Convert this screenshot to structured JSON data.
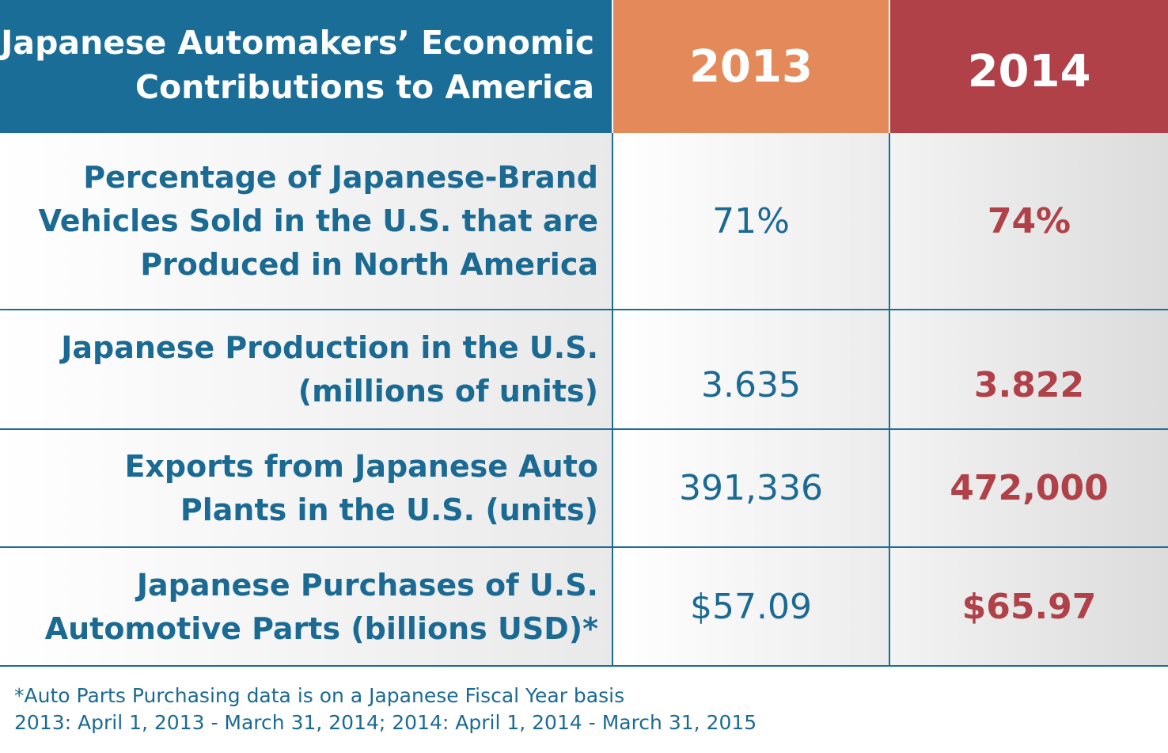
{
  "chart_data": {
    "type": "table",
    "title": "Japanese Automakers’ Economic Contributions to America",
    "title_lines": [
      "Japanese Automakers’ Economic",
      "Contributions to America"
    ],
    "columns": [
      "2013",
      "2014"
    ],
    "rows": [
      {
        "label_lines": [
          "Percentage of Japanese-Brand",
          "Vehicles Sold in the U.S. that are",
          "Produced in North America"
        ],
        "values": [
          "71%",
          "74%"
        ]
      },
      {
        "label_lines": [
          "Japanese Production in the U.S.",
          "(millions of units)"
        ],
        "values": [
          "3.635",
          "3.822"
        ]
      },
      {
        "label_lines": [
          "Exports from Japanese Auto",
          "Plants in the U.S. (units)"
        ],
        "values": [
          "391,336",
          "472,000"
        ]
      },
      {
        "label_lines": [
          "Japanese Purchases of U.S.",
          "Automotive Parts (billions USD)*"
        ],
        "values": [
          "$57.09",
          "$65.97"
        ]
      }
    ],
    "footnote": [
      "*Auto Parts Purchasing data is on a Japanese Fiscal Year basis",
      "2013: April 1, 2013 - March 31, 2014; 2014: April 1, 2014 - March 31, 2015"
    ]
  },
  "colors": {
    "header_blue": "#1a6d97",
    "header_2013_orange": "#e48a5a",
    "header_2014_red": "#b04148",
    "text_blue": "#1b6a93",
    "text_red": "#b04148"
  }
}
